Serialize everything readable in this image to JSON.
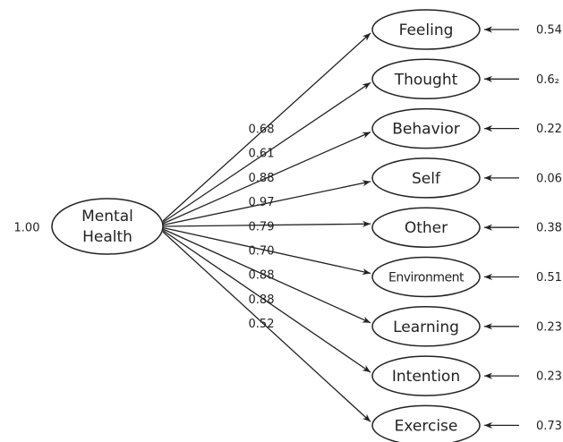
{
  "source": {
    "label_lines": [
      "Mental",
      "Health"
    ],
    "variance": "1.00"
  },
  "indicators": [
    {
      "label": "Feeling",
      "loading": "0.68",
      "error": "0.54"
    },
    {
      "label": "Thought",
      "loading": "0.61",
      "error": "0.6₂"
    },
    {
      "label": "Behavior",
      "loading": "0.88",
      "error": "0.22"
    },
    {
      "label": "Self",
      "loading": "0.97",
      "error": "0.06"
    },
    {
      "label": "Other",
      "loading": "0.79",
      "error": "0.38"
    },
    {
      "label": "Environment",
      "loading": "0.70",
      "error": "0.51"
    },
    {
      "label": "Learning",
      "loading": "0.88",
      "error": "0.23"
    },
    {
      "label": "Intention",
      "loading": "0.88",
      "error": "0.23"
    },
    {
      "label": "Exercise",
      "loading": "0.52",
      "error": "0.73"
    }
  ]
}
